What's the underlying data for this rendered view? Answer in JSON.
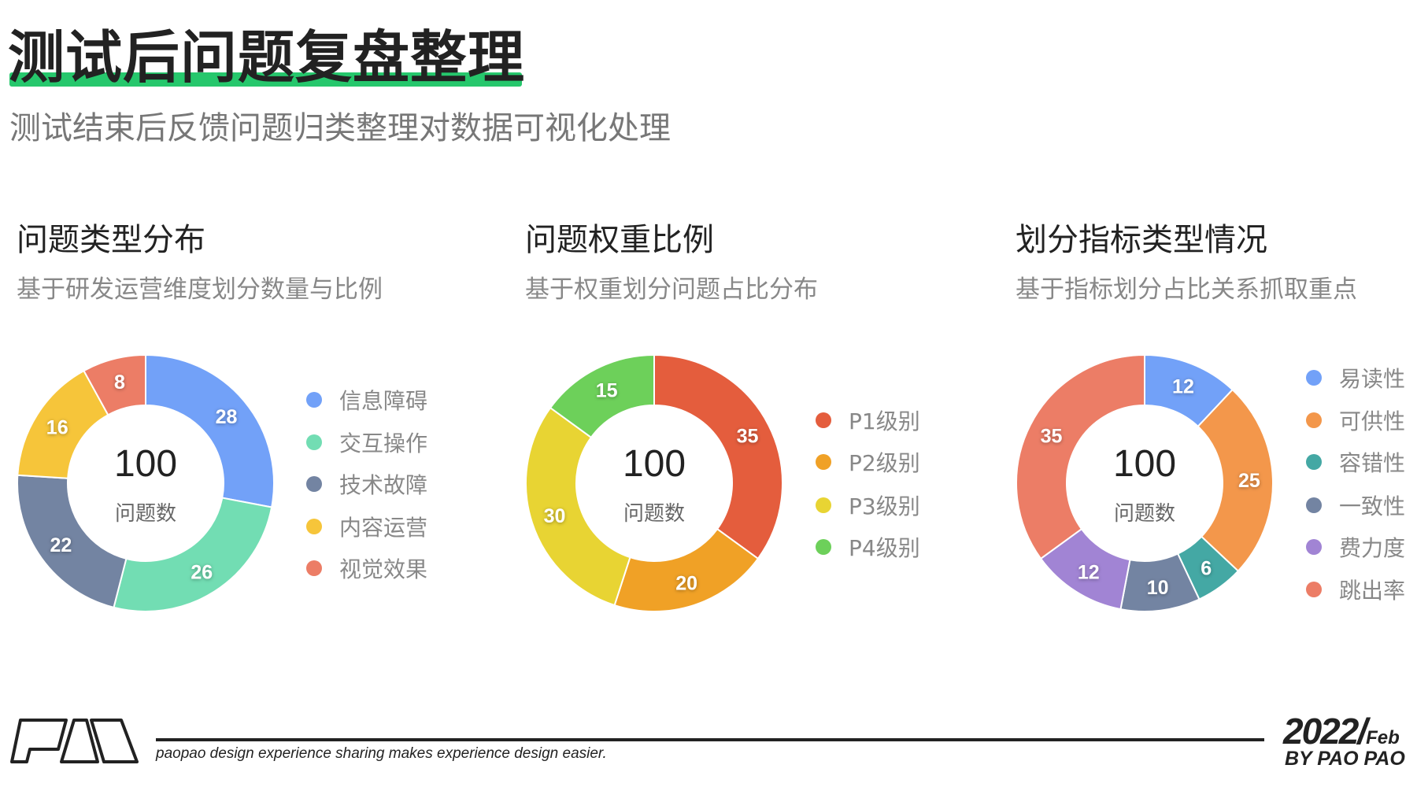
{
  "header": {
    "title": "测试后问题复盘整理",
    "subtitle": "测试结束后反馈问题归类整理对数据可视化处理",
    "accent_color": "#26c76c"
  },
  "chart_data": [
    {
      "type": "pie",
      "donut": true,
      "title": "问题类型分布",
      "subtitle": "基于研发运营维度划分数量与比例",
      "center_value": "100",
      "center_label": "问题数",
      "legend_position": "right",
      "categories": [
        "信息障碍",
        "交互操作",
        "技术故障",
        "内容运营",
        "视觉效果"
      ],
      "values": [
        28,
        26,
        22,
        16,
        8
      ],
      "labels": [
        "28",
        "26",
        "22",
        "16",
        "8"
      ],
      "colors": [
        "#72a1f8",
        "#72ddb3",
        "#7384a2",
        "#f6c53a",
        "#ec7d66"
      ]
    },
    {
      "type": "pie",
      "donut": true,
      "title": "问题权重比例",
      "subtitle": "基于权重划分问题占比分布",
      "center_value": "100",
      "center_label": "问题数",
      "legend_position": "right",
      "categories": [
        "P1级别",
        "P2级别",
        "P3级别",
        "P4级别"
      ],
      "values": [
        35,
        20,
        30,
        15
      ],
      "labels": [
        "35",
        "20",
        "30",
        "15"
      ],
      "colors": [
        "#e45d3d",
        "#f0a126",
        "#e8d433",
        "#6dd05a"
      ]
    },
    {
      "type": "pie",
      "donut": true,
      "title": "划分指标类型情况",
      "subtitle": "基于指标划分占比关系抓取重点",
      "center_value": "100",
      "center_label": "问题数",
      "legend_position": "right",
      "categories": [
        "易读性",
        "可供性",
        "容错性",
        "一致性",
        "费力度",
        "跳出率"
      ],
      "values": [
        12,
        25,
        6,
        10,
        12,
        35
      ],
      "labels": [
        "12",
        "25",
        "6",
        "10",
        "12",
        "35"
      ],
      "colors": [
        "#72a1f8",
        "#f3974b",
        "#44a8a4",
        "#7384a2",
        "#a184d4",
        "#ec7d66"
      ]
    }
  ],
  "footer": {
    "logo_text": "PAO",
    "tagline": "paopao design experience sharing makes experience design easier.",
    "year": "2022/",
    "month": "Feb",
    "byline": "BY PAO PAO"
  }
}
